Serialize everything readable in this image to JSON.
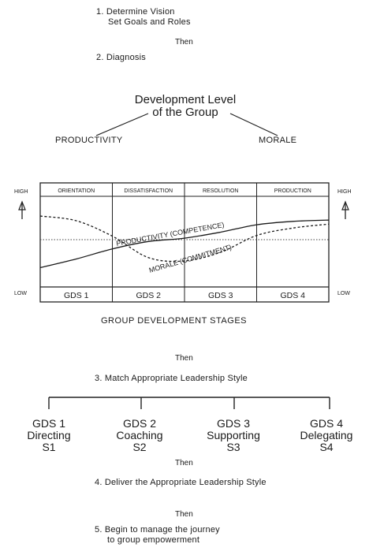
{
  "steps": {
    "step1_line1": "1. Determine Vision",
    "step1_line2": "Set Goals and Roles",
    "then1": "Then",
    "step2": "2. Diagnosis",
    "dev_level_line1": "Development Level",
    "dev_level_line2": "of the Group",
    "productivity": "PRODUCTIVITY",
    "morale": "MORALE",
    "then2": "Then",
    "step3": "3. Match Appropriate Leadership Style",
    "then3": "Then",
    "step4": "4. Deliver the Appropriate Leadership Style",
    "then4": "Then",
    "step5_line1": "5. Begin to manage the journey",
    "step5_line2": "to group empowerment"
  },
  "chart_data": {
    "type": "line",
    "title": "GROUP DEVELOPMENT STAGES",
    "stages_top": [
      "ORIENTATION",
      "DISSATISFACTION",
      "RESOLUTION",
      "PRODUCTION"
    ],
    "stages_bottom": [
      "GDS 1",
      "GDS 2",
      "GDS 3",
      "GDS 4"
    ],
    "y_high_label": "HIGH",
    "y_low_label": "LOW",
    "ylim": [
      0,
      10
    ],
    "x": [
      0,
      0.5,
      1,
      1.5,
      2,
      2.5,
      3,
      3.5,
      4
    ],
    "series": [
      {
        "name": "PRODUCTIVITY (COMPETENCE)",
        "style": "solid",
        "values": [
          1.0,
          2.3,
          3.8,
          4.9,
          5.4,
          6.3,
          7.4,
          7.9,
          8.1
        ]
      },
      {
        "name": "MORALE (COMMITMENT)",
        "style": "dashed",
        "values": [
          8.7,
          8.0,
          5.7,
          2.5,
          2.0,
          3.3,
          5.8,
          6.9,
          7.5
        ]
      }
    ],
    "midline": 5.0
  },
  "styles": [
    {
      "gds": "GDS 1",
      "name": "Directing",
      "code": "S1"
    },
    {
      "gds": "GDS 2",
      "name": "Coaching",
      "code": "S2"
    },
    {
      "gds": "GDS 3",
      "name": "Supporting",
      "code": "S3"
    },
    {
      "gds": "GDS 4",
      "name": "Delegating",
      "code": "S4"
    }
  ]
}
